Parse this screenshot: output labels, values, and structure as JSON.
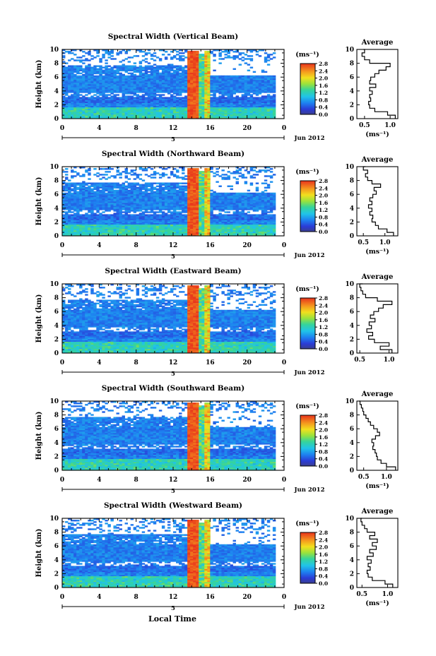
{
  "figure": {
    "x_axis_label": "Local Time",
    "date_label": "Jun 2012",
    "day_marker": "5",
    "average_title": "Average"
  },
  "chart_data": [
    {
      "type": "heatmap",
      "title": "Spectral Width (Vertical Beam)",
      "ylabel": "Height (km)",
      "xlabel": "",
      "x_range": [
        0,
        24
      ],
      "y_range": [
        0,
        10
      ],
      "x_ticks": [
        "0",
        "4",
        "8",
        "12",
        "16",
        "20",
        "0"
      ],
      "y_ticks": [
        "0",
        "2",
        "4",
        "6",
        "8",
        "10"
      ],
      "colorbar": {
        "unit": "(ms⁻¹)",
        "ticks": [
          "0.0",
          "0.4",
          "0.8",
          "1.2",
          "1.6",
          "2.0",
          "2.4",
          "2.8"
        ],
        "range": [
          0,
          2.8
        ]
      },
      "profile": {
        "title": "Average",
        "xlabel": "(ms⁻¹)",
        "x_ticks": [
          "0.5",
          "1.0"
        ],
        "xlim": [
          0.35,
          1.15
        ],
        "heights": [
          0,
          0.5,
          1,
          1.5,
          2,
          2.5,
          3,
          3.5,
          4,
          4.5,
          5,
          5.5,
          6,
          6.5,
          7,
          7.5,
          8,
          8.5,
          9,
          9.5,
          10
        ],
        "values": [
          1.1,
          0.95,
          0.7,
          0.6,
          0.58,
          0.62,
          0.6,
          0.65,
          0.6,
          0.72,
          0.6,
          0.62,
          0.7,
          0.78,
          0.92,
          1.0,
          0.6,
          0.5,
          0.45,
          0.5,
          0.48
        ]
      }
    },
    {
      "type": "heatmap",
      "title": "Spectral Width (Northward Beam)",
      "ylabel": "Height (km)",
      "xlabel": "",
      "x_range": [
        0,
        24
      ],
      "y_range": [
        0,
        10
      ],
      "x_ticks": [
        "0",
        "4",
        "8",
        "12",
        "16",
        "20",
        "0"
      ],
      "y_ticks": [
        "0",
        "2",
        "4",
        "6",
        "8",
        "10"
      ],
      "colorbar": {
        "unit": "(ms⁻¹)",
        "ticks": [
          "0.0",
          "0.4",
          "0.8",
          "1.2",
          "1.6",
          "2.0",
          "2.4",
          "2.8"
        ],
        "range": [
          0,
          2.8
        ]
      },
      "profile": {
        "title": "Average",
        "xlabel": "(ms⁻¹)",
        "x_ticks": [
          "0.5",
          "1.0"
        ],
        "xlim": [
          0.35,
          1.3
        ],
        "heights": [
          0,
          0.5,
          1,
          1.5,
          2,
          2.5,
          3,
          3.5,
          4,
          4.5,
          5,
          5.5,
          6,
          6.5,
          7,
          7.5,
          8,
          8.5,
          9,
          9.5,
          10
        ],
        "values": [
          1.2,
          1.05,
          0.85,
          0.78,
          0.7,
          0.72,
          0.65,
          0.7,
          0.62,
          0.7,
          0.65,
          0.72,
          0.8,
          0.75,
          0.9,
          0.7,
          0.6,
          0.55,
          0.6,
          0.5,
          0.55
        ]
      }
    },
    {
      "type": "heatmap",
      "title": "Spectral Width (Eastward Beam)",
      "ylabel": "Height (km)",
      "xlabel": "",
      "x_range": [
        0,
        24
      ],
      "y_range": [
        0,
        10
      ],
      "x_ticks": [
        "0",
        "4",
        "8",
        "12",
        "16",
        "20",
        "0"
      ],
      "y_ticks": [
        "0",
        "2",
        "4",
        "6",
        "8",
        "10"
      ],
      "colorbar": {
        "unit": "(ms⁻¹)",
        "ticks": [
          "0.0",
          "0.4",
          "0.8",
          "1.2",
          "1.6",
          "2.0",
          "2.4",
          "2.8"
        ],
        "range": [
          0,
          2.8
        ]
      },
      "profile": {
        "title": "Average",
        "xlabel": "",
        "x_ticks": [
          "0.5",
          "1.0"
        ],
        "xlim": [
          0.45,
          1.15
        ],
        "heights": [
          0,
          0.5,
          1,
          1.5,
          2,
          2.5,
          3,
          3.5,
          4,
          4.5,
          5,
          5.5,
          6,
          6.5,
          7,
          7.5,
          8,
          8.5,
          9,
          9.5,
          10
        ],
        "values": [
          1.05,
          0.85,
          1.0,
          0.75,
          0.65,
          0.72,
          0.62,
          0.7,
          0.66,
          0.76,
          0.68,
          0.74,
          0.82,
          0.9,
          1.05,
          0.8,
          0.6,
          0.55,
          0.52,
          0.5,
          0.55
        ]
      }
    },
    {
      "type": "heatmap",
      "title": "Spectral Width (Southward Beam)",
      "ylabel": "Height (km)",
      "xlabel": "",
      "x_range": [
        0,
        24
      ],
      "y_range": [
        0,
        10
      ],
      "x_ticks": [
        "0",
        "4",
        "8",
        "12",
        "16",
        "20",
        "0"
      ],
      "y_ticks": [
        "0",
        "2",
        "4",
        "6",
        "8",
        "10"
      ],
      "colorbar": {
        "unit": "(ms⁻¹)",
        "ticks": [
          "0.0",
          "0.4",
          "0.8",
          "1.2",
          "1.6",
          "2.0",
          "2.4",
          "2.8"
        ],
        "range": [
          0,
          2.8
        ]
      },
      "profile": {
        "title": "Average",
        "xlabel": "(ms⁻¹)",
        "x_ticks": [
          "0.5",
          "1.0"
        ],
        "xlim": [
          0.35,
          1.25
        ],
        "heights": [
          0,
          0.5,
          1,
          1.5,
          2,
          2.5,
          3,
          3.5,
          4,
          4.5,
          5,
          5.5,
          6,
          6.5,
          7,
          7.5,
          8,
          8.5,
          9,
          9.5,
          10
        ],
        "values": [
          1.2,
          1.0,
          0.88,
          0.8,
          0.78,
          0.75,
          0.7,
          0.72,
          0.68,
          0.76,
          0.85,
          0.8,
          0.72,
          0.65,
          0.6,
          0.55,
          0.5,
          0.48,
          0.45,
          0.42,
          0.4
        ]
      }
    },
    {
      "type": "heatmap",
      "title": "Spectral Width (Westward Beam)",
      "ylabel": "Height (km)",
      "xlabel": "",
      "x_range": [
        0,
        24
      ],
      "y_range": [
        0,
        10
      ],
      "x_ticks": [
        "0",
        "4",
        "8",
        "12",
        "16",
        "20",
        "0"
      ],
      "y_ticks": [
        "0",
        "2",
        "4",
        "6",
        "8",
        "10"
      ],
      "colorbar": {
        "unit": "(ms⁻¹)",
        "ticks": [
          "0.0",
          "0.4",
          "0.8",
          "1.2",
          "1.6",
          "2.0",
          "2.4",
          "2.8"
        ],
        "range": [
          0,
          2.8
        ]
      },
      "profile": {
        "title": "Average",
        "xlabel": "(ms⁻¹)",
        "x_ticks": [
          "0.5",
          "1.0"
        ],
        "xlim": [
          0.4,
          1.2
        ],
        "heights": [
          0,
          0.5,
          1,
          1.5,
          2,
          2.5,
          3,
          3.5,
          4,
          4.5,
          5,
          5.5,
          6,
          6.5,
          7,
          7.5,
          8,
          8.5,
          9,
          9.5,
          10
        ],
        "values": [
          1.1,
          0.95,
          0.7,
          0.62,
          0.6,
          0.66,
          0.62,
          0.68,
          0.6,
          0.72,
          0.65,
          0.78,
          0.7,
          0.8,
          0.65,
          0.75,
          0.6,
          0.55,
          0.5,
          0.48,
          0.5
        ]
      }
    }
  ]
}
